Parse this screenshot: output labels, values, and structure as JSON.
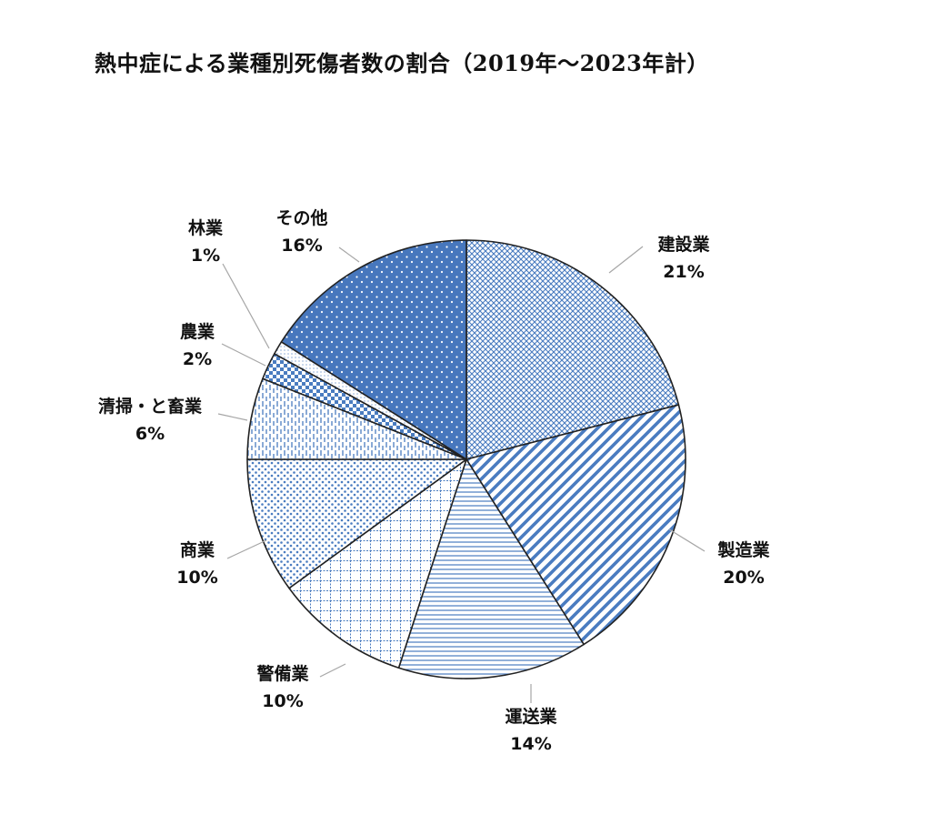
{
  "chart_data": {
    "type": "pie",
    "title": "熱中症による業種別死傷者数の割合（2019年～2023年計）",
    "start_angle_deg": 0,
    "direction": "clockwise",
    "slices": [
      {
        "label": "建設業",
        "value": 21,
        "value_label": "21%",
        "pattern": "crosshatch"
      },
      {
        "label": "製造業",
        "value": 20,
        "value_label": "20%",
        "pattern": "diagonal-wide"
      },
      {
        "label": "運送業",
        "value": 14,
        "value_label": "14%",
        "pattern": "horizontal"
      },
      {
        "label": "警備業",
        "value": 10,
        "value_label": "10%",
        "pattern": "grid"
      },
      {
        "label": "商業",
        "value": 10,
        "value_label": "10%",
        "pattern": "dots-small"
      },
      {
        "label": "清掃・と畜業",
        "value": 6,
        "value_label": "6%",
        "pattern": "vertical-dashed"
      },
      {
        "label": "農業",
        "value": 2,
        "value_label": "2%",
        "pattern": "checker"
      },
      {
        "label": "林業",
        "value": 1,
        "value_label": "1%",
        "pattern": "dots-fine"
      },
      {
        "label": "その他",
        "value": 16,
        "value_label": "16%",
        "pattern": "dots-on-blue"
      }
    ],
    "colors": {
      "accent": "#4a7cc0",
      "solid_fill": "#4777bd",
      "outline": "#222222",
      "leader": "#a6a6a6"
    },
    "legend": "none"
  }
}
